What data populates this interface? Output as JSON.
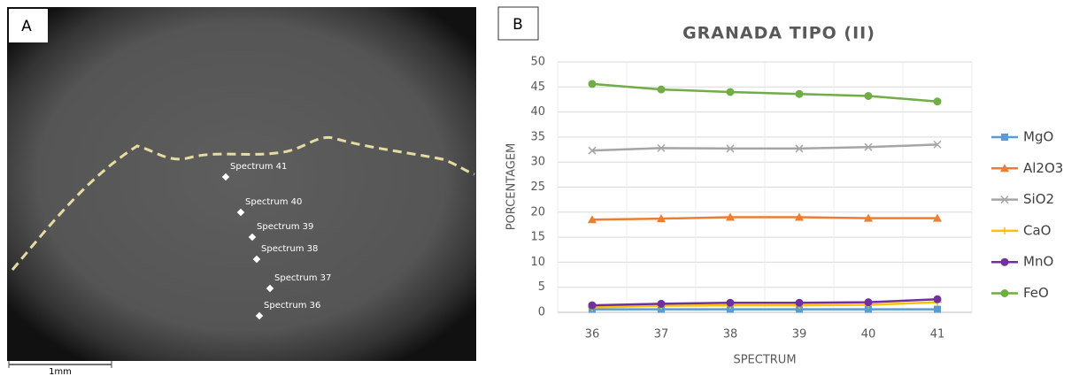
{
  "panel_a": {
    "label": "A",
    "spectra": [
      "Spectrum 41",
      "Spectrum 40",
      "Spectrum 39",
      "Spectrum 38",
      "Spectrum 37",
      "Spectrum 36"
    ],
    "scale_bar": "1mm"
  },
  "panel_b": {
    "label": "B"
  },
  "chart_data": {
    "type": "line",
    "title": "GRANADA TIPO (II)",
    "x_label": "SPECTRUM",
    "y_label": "PORCENTAGEM",
    "categories": [
      "36",
      "37",
      "38",
      "39",
      "40",
      "41"
    ],
    "ylim": [
      0,
      50
    ],
    "yticks": [
      0,
      5,
      10,
      15,
      20,
      25,
      30,
      35,
      40,
      45,
      50
    ],
    "grid": true,
    "legend": "right",
    "series": [
      {
        "name": "MgO",
        "color": "#5b9bd5",
        "marker": "square",
        "values": [
          0.6,
          0.6,
          0.6,
          0.6,
          0.6,
          0.6
        ]
      },
      {
        "name": "Al2O3",
        "color": "#ed7d31",
        "marker": "triangle",
        "values": [
          18.5,
          18.7,
          19.0,
          19.0,
          18.8,
          18.8
        ]
      },
      {
        "name": "SiO2",
        "color": "#a5a5a5",
        "marker": "x",
        "values": [
          32.3,
          32.8,
          32.7,
          32.7,
          33.0,
          33.5
        ]
      },
      {
        "name": "CaO",
        "color": "#ffc000",
        "marker": "dash",
        "values": [
          1.0,
          1.3,
          1.4,
          1.4,
          1.5,
          2.0
        ]
      },
      {
        "name": "MnO",
        "color": "#7030a0",
        "marker": "circle",
        "values": [
          1.4,
          1.7,
          1.9,
          1.9,
          2.0,
          2.6
        ]
      },
      {
        "name": "FeO",
        "color": "#70ad47",
        "marker": "circle",
        "values": [
          45.6,
          44.5,
          44.0,
          43.6,
          43.2,
          42.1
        ]
      }
    ]
  }
}
